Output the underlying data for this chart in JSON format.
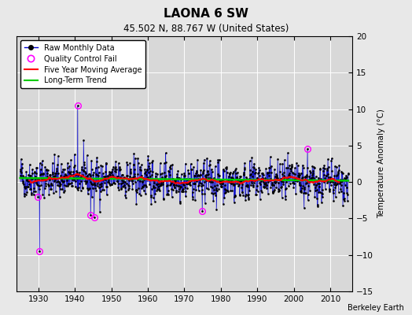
{
  "title": "LAONA 6 SW",
  "subtitle": "45.502 N, 88.767 W (United States)",
  "ylabel": "Temperature Anomaly (°C)",
  "credit": "Berkeley Earth",
  "xlim": [
    1924,
    2016
  ],
  "ylim": [
    -15,
    20
  ],
  "yticks": [
    -15,
    -10,
    -5,
    0,
    5,
    10,
    15,
    20
  ],
  "xticks": [
    1930,
    1940,
    1950,
    1960,
    1970,
    1980,
    1990,
    2000,
    2010
  ],
  "bg_color": "#d8d8d8",
  "fig_color": "#e8e8e8",
  "raw_color": "#0000cc",
  "qc_color": "#ff00ff",
  "ma_color": "#ff0000",
  "trend_color": "#00cc00",
  "start_year": 1925,
  "end_year": 2014,
  "seed": 42
}
